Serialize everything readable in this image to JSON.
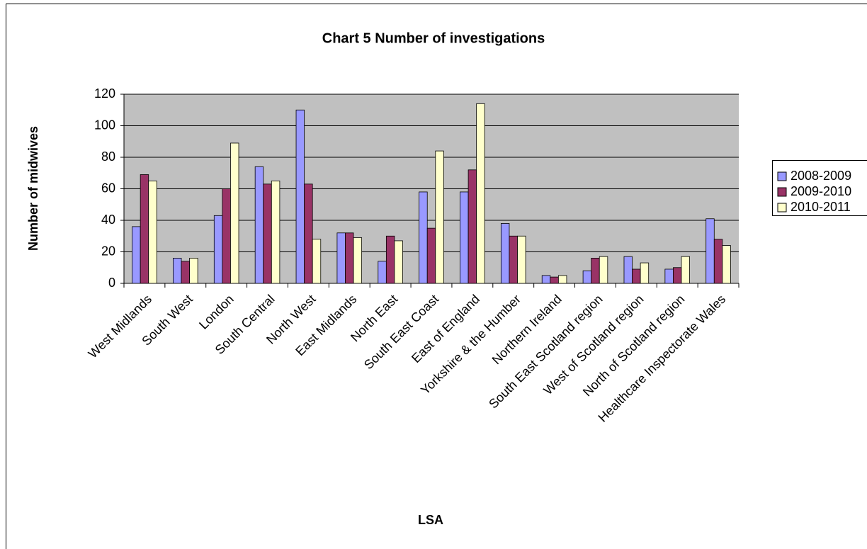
{
  "chart_data": {
    "type": "bar",
    "title": "Chart 5 Number of investigations",
    "xlabel": "LSA",
    "ylabel": "Number of midwives",
    "categories": [
      "West Midlands",
      "South West",
      "London",
      "South Central",
      "North West",
      "East Midlands",
      "North East",
      "South East Coast",
      "East of England",
      "Yorkshire & the Humber",
      "Northern Ireland",
      "South East Scotland region",
      "West of Scotland region",
      "North of Scotland region",
      "Healthcare Inspectorate Wales"
    ],
    "series": [
      {
        "name": "2008-2009",
        "color": "#9999ff",
        "values": [
          36,
          16,
          43,
          74,
          110,
          32,
          14,
          58,
          58,
          38,
          5,
          8,
          17,
          9,
          41
        ]
      },
      {
        "name": "2009-2010",
        "color": "#993366",
        "values": [
          69,
          14,
          60,
          63,
          63,
          32,
          30,
          35,
          72,
          30,
          4,
          16,
          9,
          10,
          28
        ]
      },
      {
        "name": "2010-2011",
        "color": "#ffffcc",
        "values": [
          65,
          16,
          89,
          65,
          28,
          29,
          27,
          84,
          114,
          30,
          5,
          17,
          13,
          17,
          24
        ]
      }
    ],
    "ylim": [
      0,
      120
    ],
    "yticks": [
      0,
      20,
      40,
      60,
      80,
      100,
      120
    ],
    "grid": true,
    "legend": "right"
  }
}
